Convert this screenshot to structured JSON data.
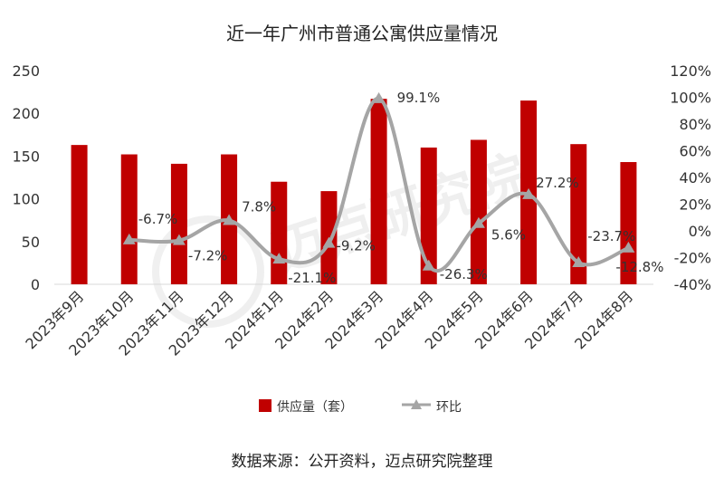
{
  "chart_data": {
    "type": "bar+line",
    "title": "近一年广州市普通公寓供应量情况",
    "categories": [
      "2023年9月",
      "2023年10月",
      "2023年11月",
      "2023年12月",
      "2024年1月",
      "2024年2月",
      "2024年3月",
      "2024年4月",
      "2024年5月",
      "2024年6月",
      "2024年7月",
      "2024年8月"
    ],
    "series": [
      {
        "name": "供应量（套）",
        "type": "bar",
        "axis": "left",
        "color": "#c00000",
        "values": [
          163,
          152,
          141,
          152,
          120,
          109,
          217,
          160,
          169,
          215,
          164,
          143
        ]
      },
      {
        "name": "环比",
        "type": "line",
        "axis": "right",
        "color": "#a5a5a5",
        "values": [
          null,
          -6.7,
          -7.2,
          7.8,
          -21.1,
          -9.2,
          99.1,
          -26.3,
          5.6,
          27.2,
          -23.7,
          -12.8
        ],
        "labels": [
          "",
          "-6.7%",
          "-7.2%",
          "7.8%",
          "-21.1%",
          "-9.2%",
          "99.1%",
          "-26.3%",
          "5.6%",
          "27.2%",
          "-23.7%",
          "-12.8%"
        ]
      }
    ],
    "left_axis": {
      "ylim": [
        0,
        250
      ],
      "ticks": [
        0,
        50,
        100,
        150,
        200,
        250
      ],
      "tick_labels": [
        "0",
        "50",
        "100",
        "150",
        "200",
        "250"
      ]
    },
    "right_axis": {
      "ylim": [
        -40,
        120
      ],
      "ticks": [
        -40,
        -20,
        0,
        20,
        40,
        60,
        80,
        100,
        120
      ],
      "tick_labels": [
        "-40%",
        "-20%",
        "0%",
        "20%",
        "40%",
        "60%",
        "80%",
        "100%",
        "120%"
      ]
    },
    "legend": {
      "position": "bottom",
      "items": [
        "供应量（套）",
        "环比"
      ]
    },
    "source": "数据来源：公开资料，迈点研究院整理",
    "watermark": "迈点研究院"
  }
}
